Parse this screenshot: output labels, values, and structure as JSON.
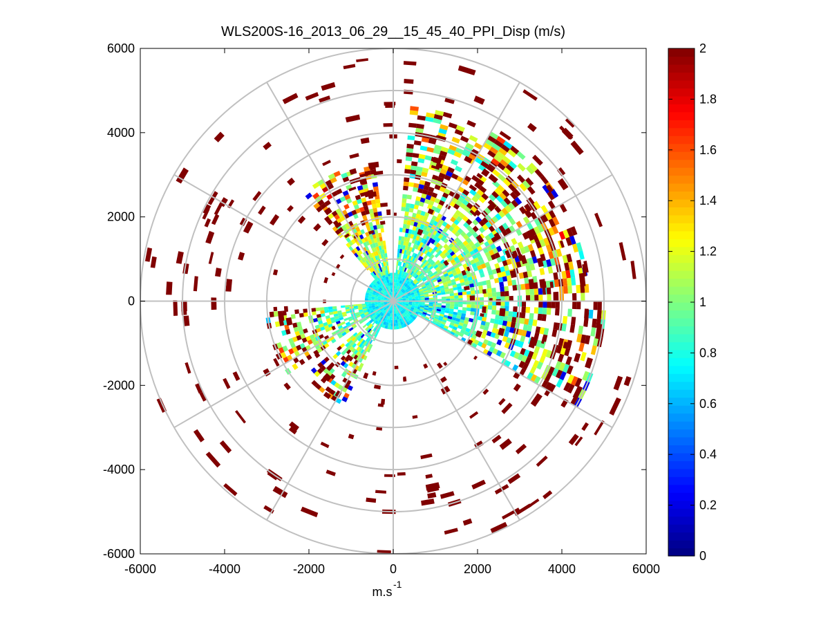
{
  "chart_data": {
    "type": "heatmap",
    "subtype": "polar-ppi",
    "title": "WLS200S-16_2013_06_29__15_45_40_PPI_Disp (m/s)",
    "xlabel_base": "m.s",
    "xlabel_sup": "-1",
    "ylabel": "",
    "xlim": [
      -6000,
      6000
    ],
    "ylim": [
      -6000,
      6000
    ],
    "x_ticks": [
      -6000,
      -4000,
      -2000,
      0,
      2000,
      4000,
      6000
    ],
    "y_ticks": [
      -6000,
      -4000,
      -2000,
      0,
      2000,
      4000,
      6000
    ],
    "x_tick_labels": [
      "-6000",
      "-4000",
      "-2000",
      "0",
      "2000",
      "4000",
      "6000"
    ],
    "y_tick_labels": [
      "-6000",
      "-4000",
      "-2000",
      "0",
      "2000",
      "4000",
      "6000"
    ],
    "polar_grid": {
      "ring_radii": [
        1000,
        2000,
        3000,
        4000,
        5000,
        6000
      ],
      "spoke_angles_deg": [
        0,
        30,
        60,
        90,
        120,
        150,
        180,
        210,
        240,
        270,
        300,
        330
      ],
      "max_range": 6000
    },
    "colorbar": {
      "colormap": "jet",
      "clim": [
        0,
        2
      ],
      "ticks": [
        0,
        0.2,
        0.4,
        0.6,
        0.8,
        1,
        1.2,
        1.4,
        1.6,
        1.8,
        2
      ],
      "tick_labels": [
        "0",
        "0.2",
        "0.4",
        "0.6",
        "0.8",
        "1",
        "1.2",
        "1.4",
        "1.6",
        "1.8",
        "2"
      ]
    },
    "sectors": [
      {
        "az_from": 5,
        "az_to": 90,
        "r_from": 0,
        "r_to": 4600,
        "value_mean": 0.85,
        "description": "dense returns NE quadrant"
      },
      {
        "az_from": 90,
        "az_to": 120,
        "r_from": 0,
        "r_to": 5000,
        "value_mean": 0.75,
        "description": "dense returns E-SE"
      },
      {
        "az_from": 235,
        "az_to": 265,
        "r_from": 0,
        "r_to": 3000,
        "value_mean": 0.8,
        "description": "WSW sector"
      },
      {
        "az_from": 205,
        "az_to": 230,
        "r_from": 0,
        "r_to": 2700,
        "value_mean": 0.8,
        "description": "SW sector"
      },
      {
        "az_from": 320,
        "az_to": 352,
        "r_from": 500,
        "r_to": 3300,
        "value_mean": 1.0,
        "description": "NNW sector"
      }
    ],
    "near_field": {
      "radius": 650,
      "value_mean": 0.75
    },
    "sparse_far_returns": {
      "value": 2,
      "r_range": [
        1500,
        6000
      ]
    }
  }
}
